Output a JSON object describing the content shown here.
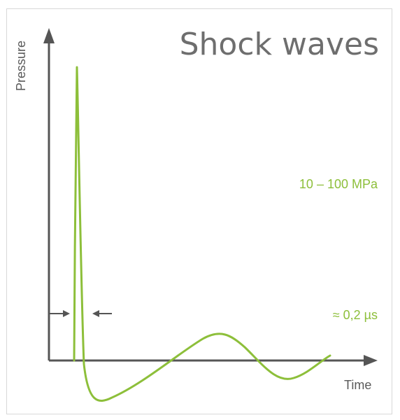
{
  "title": "Shock waves",
  "axes": {
    "y_label": "Pressure",
    "x_label": "Time"
  },
  "annotations": {
    "pressure_range": "10 – 100 MPa",
    "pulse_duration": "≈ 0,2 µs"
  },
  "colors": {
    "curve": "#8dbf3a",
    "axis": "#555555",
    "title": "#6e6e6e",
    "accent_text": "#8dbf3a"
  }
}
